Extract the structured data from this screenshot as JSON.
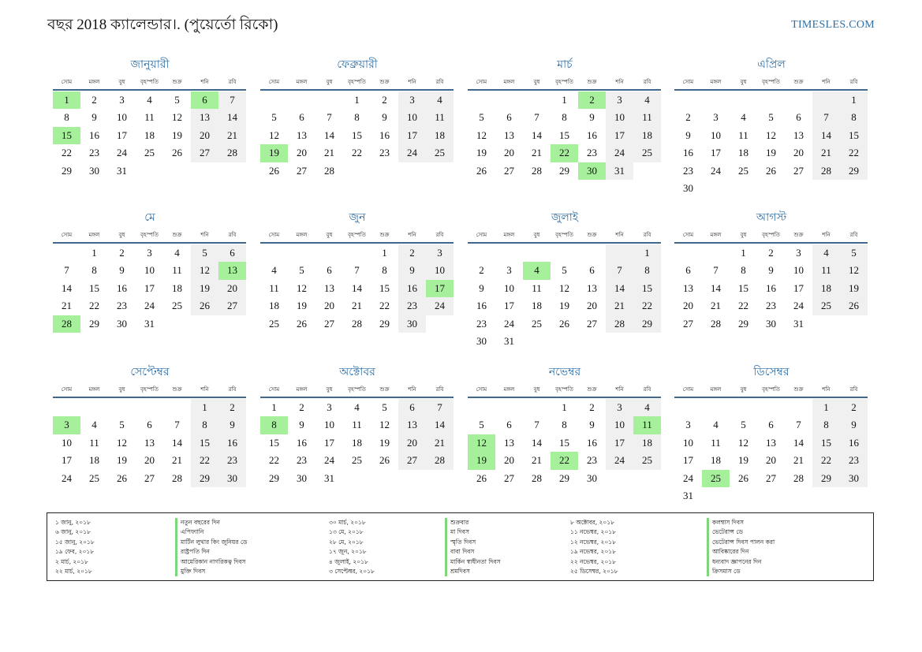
{
  "header": {
    "title": "বছর 2018 ক্যালেন্ডার।. (পুয়ের্তো রিকো)",
    "brand": "TIMESLES.COM"
  },
  "weekdays": [
    "সোম",
    "মঙ্গল",
    "বুধ",
    "বৃহস্পতি",
    "শুক্র",
    "শনি",
    "রবি"
  ],
  "colors": {
    "holiday": "#a6f09c",
    "weekend": "#f0f0f0",
    "accent": "#2e6ea5",
    "rule": "#41698f"
  },
  "months": [
    {
      "name": "জানুয়ারী",
      "start_offset": 0,
      "days": 31,
      "holidays": [
        1,
        6,
        15
      ]
    },
    {
      "name": "ফেব্রুয়ারী",
      "start_offset": 3,
      "days": 28,
      "holidays": [
        19
      ]
    },
    {
      "name": "মার্চ",
      "start_offset": 3,
      "days": 31,
      "holidays": [
        2,
        22,
        30
      ]
    },
    {
      "name": "এপ্রিল",
      "start_offset": 6,
      "days": 30,
      "holidays": []
    },
    {
      "name": "মে",
      "start_offset": 1,
      "days": 31,
      "holidays": [
        13,
        28
      ]
    },
    {
      "name": "জুন",
      "start_offset": 4,
      "days": 30,
      "holidays": [
        17
      ]
    },
    {
      "name": "জুলাই",
      "start_offset": 6,
      "days": 31,
      "holidays": [
        4
      ]
    },
    {
      "name": "আগস্ট",
      "start_offset": 2,
      "days": 31,
      "holidays": []
    },
    {
      "name": "সেপ্টেম্বর",
      "start_offset": 5,
      "days": 30,
      "holidays": [
        3
      ]
    },
    {
      "name": "অক্টোবর",
      "start_offset": 0,
      "days": 31,
      "holidays": [
        8
      ]
    },
    {
      "name": "নভেম্বর",
      "start_offset": 3,
      "days": 30,
      "holidays": [
        11,
        12,
        19,
        22
      ]
    },
    {
      "name": "ডিসেম্বর",
      "start_offset": 5,
      "days": 31,
      "holidays": [
        25
      ]
    }
  ],
  "holiday_list": [
    {
      "date": "১ জানু, ২০১৮",
      "name": "নতুন বছরের দিন"
    },
    {
      "date": "৬ জানু, ২০১৮",
      "name": "এপিফ্যানি"
    },
    {
      "date": "১৫ জানু, ২০১৮",
      "name": "মার্টিন লুথার কিং জুনিয়র ডে"
    },
    {
      "date": "১৯ ফেব, ২০১৮",
      "name": "রাষ্ট্রপতি দিন"
    },
    {
      "date": "২ মার্চ, ২০১৮",
      "name": "আমেরিকান নাগরিকত্ব দিবস"
    },
    {
      "date": "২২ মার্চ, ২০১৮",
      "name": "মুক্তি দিবস"
    },
    {
      "date": "৩০ মার্চ, ২০১৮",
      "name": "শুক্রবার"
    },
    {
      "date": "১৩ মে, ২০১৮",
      "name": "মা দিবস"
    },
    {
      "date": "২৮ মে, ২০১৮",
      "name": "স্মৃতি দিবস"
    },
    {
      "date": "১৭ জুন, ২০১৮",
      "name": "বাবা দিবস"
    },
    {
      "date": "৪ জুলাই, ২০১৮",
      "name": "মার্কিন স্বাধীনতা দিবস"
    },
    {
      "date": "৩ সেপ্টেম্বর, ২০১৮",
      "name": "শ্রমদিবস"
    },
    {
      "date": "৮ অক্টোবর, ২০১৮",
      "name": "কলম্বাস দিবস"
    },
    {
      "date": "১১ নভেম্বর, ২০১৮",
      "name": "ভেটেরান্স ডে"
    },
    {
      "date": "১২ নভেম্বর, ২০১৮",
      "name": "ভেটেরান্স দিবস পালন করা"
    },
    {
      "date": "১৯ নভেম্বর, ২০১৮",
      "name": "আবিষ্কারের দিন"
    },
    {
      "date": "২২ নভেম্বর, ২০১৮",
      "name": "ধন্যবাদ জ্ঞাপনের দিন"
    },
    {
      "date": "২৫ ডিসেম্বর, ২০১৮",
      "name": "ক্রিসমাস ডে"
    }
  ]
}
